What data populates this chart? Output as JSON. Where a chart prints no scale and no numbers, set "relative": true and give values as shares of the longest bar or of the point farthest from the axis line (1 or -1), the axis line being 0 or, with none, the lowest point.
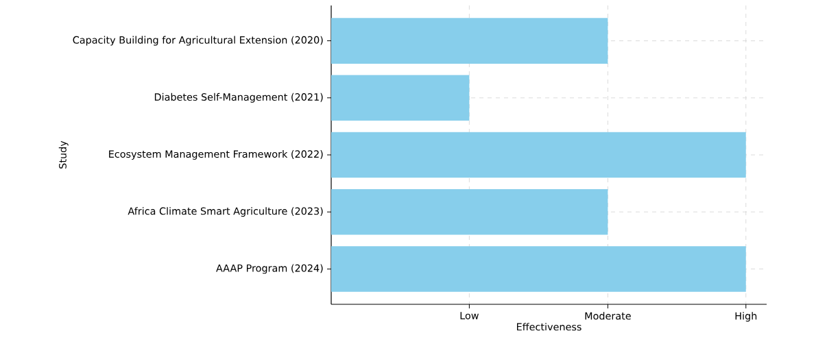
{
  "chart_data": {
    "type": "bar",
    "orientation": "horizontal",
    "relative": true,
    "xlabel": "Effectiveness",
    "ylabel": "Study",
    "categories": [
      "Capacity Building for Agricultural Extension (2020)",
      "Diabetes Self-Management (2021)",
      "Ecosystem Management Framework (2022)",
      "Africa Climate Smart Agriculture (2023)",
      "AAAP Program (2024)"
    ],
    "values": [
      0.667,
      0.333,
      1,
      0.667,
      1
    ],
    "color": "#87ceeb",
    "annotations": [
      {
        "text": "Low",
        "x": 0.333
      },
      {
        "text": "Moderate",
        "x": 0.667
      },
      {
        "text": "High",
        "x": 1
      }
    ],
    "grid": true
  }
}
